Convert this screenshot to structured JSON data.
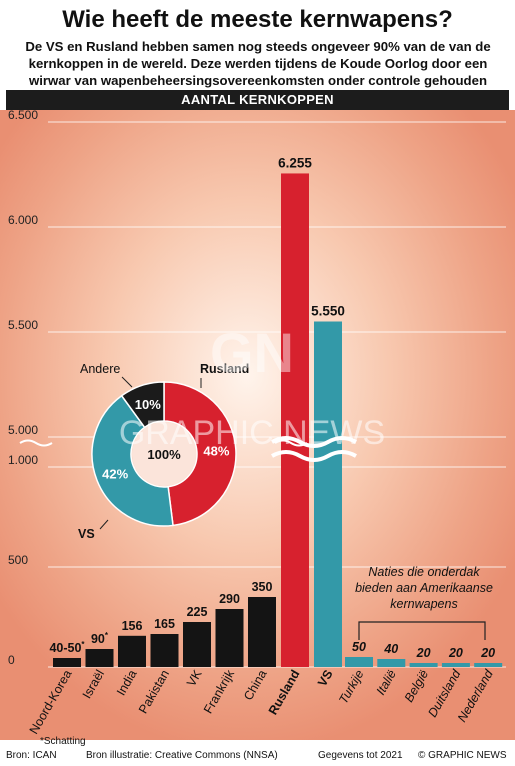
{
  "header": {
    "title": "Wie heeft de meeste kernwapens?",
    "subtitle": "De VS en Rusland hebben samen nog steeds ongeveer 90% van de van de kernkoppen in de wereld. Deze werden tijdens de Koude Oorlog door een wirwar van wapenbeheersingsovereenkomsten onder controle gehouden",
    "band": "AANTAL KERNKOPPEN"
  },
  "chart_data": [
    {
      "type": "bar",
      "ylabel": "AANTAL KERNKOPPEN",
      "y_axis_segments": [
        {
          "range": [
            0,
            1000
          ],
          "ticks": [
            {
              "value": 0,
              "label": "0"
            },
            {
              "value": 500,
              "label": "500"
            },
            {
              "value": 1000,
              "label": "1.000"
            }
          ]
        },
        {
          "range": [
            5000,
            6500
          ],
          "ticks": [
            {
              "value": 5000,
              "label": "5.000"
            },
            {
              "value": 5500,
              "label": "5.500"
            },
            {
              "value": 6000,
              "label": "6.000"
            },
            {
              "value": 6500,
              "label": "6.500"
            }
          ]
        }
      ],
      "categories": [
        "Noord-Korea",
        "Israël",
        "India",
        "Pakistan",
        "VK",
        "Frankrijk",
        "China",
        "Rusland",
        "VS",
        "Turkije",
        "Italië",
        "België",
        "Duitsland",
        "Nederland"
      ],
      "values": [
        45,
        90,
        156,
        165,
        225,
        290,
        350,
        6255,
        5550,
        50,
        40,
        20,
        20,
        20
      ],
      "value_labels": [
        "40-50",
        "90",
        "156",
        "165",
        "225",
        "290",
        "350",
        "6.255",
        "5.550",
        "50",
        "40",
        "20",
        "20",
        "20"
      ],
      "estimate_marker": "*",
      "estimated": [
        true,
        true,
        false,
        false,
        false,
        false,
        false,
        false,
        false,
        false,
        false,
        false,
        false,
        false
      ],
      "groups": [
        "nuclear-state",
        "nuclear-state",
        "nuclear-state",
        "nuclear-state",
        "nuclear-state",
        "nuclear-state",
        "nuclear-state",
        "russia",
        "usa",
        "host",
        "host",
        "host",
        "host",
        "host"
      ],
      "colors": {
        "nuclear-state": "#141414",
        "russia": "#d7212e",
        "usa": "#3399a8",
        "host": "#3399a8"
      },
      "annotation": "Naties die onderdak bieden aan Amerikaanse kernwapens"
    },
    {
      "type": "pie",
      "center_label": "100%",
      "slices": [
        {
          "name": "Rusland",
          "value": 48,
          "label": "48%",
          "color": "#d7212e"
        },
        {
          "name": "VS",
          "value": 42,
          "label": "42%",
          "color": "#3399a8"
        },
        {
          "name": "Andere",
          "value": 10,
          "label": "10%",
          "color": "#1b1b1b"
        }
      ]
    }
  ],
  "watermark": {
    "letters": "GN",
    "text": "GRAPHIC NEWS"
  },
  "footer": {
    "note": "*Schatting",
    "source": "Bron: ICAN",
    "illustration": "Bron illustratie: Creative Commons (NNSA)",
    "data_date": "Gegevens tot 2021",
    "credit": "© GRAPHIC NEWS"
  }
}
